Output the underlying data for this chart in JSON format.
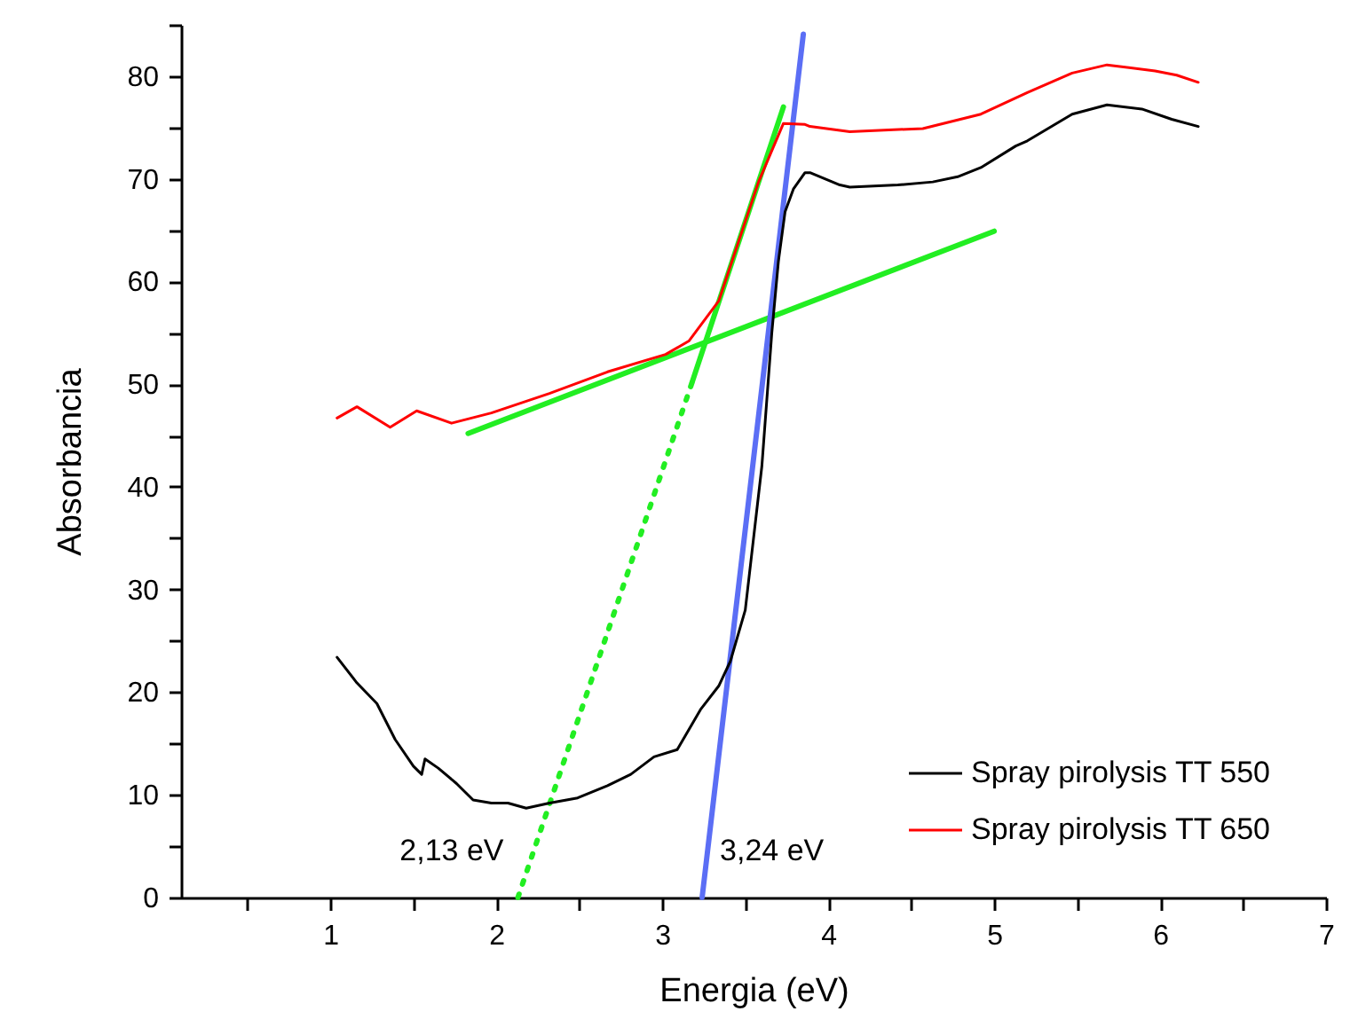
{
  "chart_data": {
    "type": "line",
    "xlabel": "Energia (eV)",
    "ylabel": "Absorbancia",
    "xlim": [
      0.1,
      7
    ],
    "ylim": [
      0,
      85
    ],
    "xticks": [
      {
        "value": 0.5,
        "label": null
      },
      1,
      {
        "value": 1.5,
        "label": null
      },
      2,
      {
        "value": 2.5,
        "label": null
      },
      3,
      {
        "value": 3.5,
        "label": null
      },
      4,
      {
        "value": 4.5,
        "label": null
      },
      5,
      {
        "value": 5.5,
        "label": null
      },
      6,
      {
        "value": 6.5,
        "label": null
      },
      7
    ],
    "yticks": [
      0,
      {
        "value": 5,
        "label": null
      },
      10,
      {
        "value": 15,
        "label": null
      },
      20,
      {
        "value": 25,
        "label": null
      },
      30,
      {
        "value": 35,
        "label": null
      },
      40,
      {
        "value": 45,
        "label": null
      },
      50,
      {
        "value": 55,
        "label": null
      },
      60,
      {
        "value": 65,
        "label": null
      },
      70,
      {
        "value": 75,
        "label": null
      },
      80,
      {
        "value": 85,
        "label": null
      }
    ],
    "grid": false,
    "legend": "bottom right",
    "marker": "none",
    "annotations": [
      {
        "text": "2,13 eV",
        "x": 2.13,
        "y": 0
      },
      {
        "text": "3,24 eV",
        "x": 3.24,
        "y": 0
      }
    ],
    "series": [
      {
        "name": "Spray pirolysis TT 550",
        "color": "#000000",
        "line_style": "solid",
        "x": [
          1.04,
          1.16,
          1.28,
          1.39,
          1.5,
          1.55,
          1.57,
          1.65,
          1.76,
          1.86,
          1.97,
          2.07,
          2.18,
          2.32,
          2.49,
          2.67,
          2.81,
          2.95,
          3.09,
          3.23,
          3.34,
          3.41,
          3.5,
          3.6,
          3.66,
          3.7,
          3.74,
          3.79,
          3.86,
          3.89,
          4.07,
          4.13,
          4.42,
          4.63,
          4.78,
          4.92,
          5.13,
          5.2,
          5.47,
          5.68,
          5.89,
          6.07,
          6.23
        ],
        "values": [
          23.4,
          20.9,
          18.9,
          15.4,
          12.8,
          12.0,
          13.5,
          12.6,
          11.1,
          9.5,
          9.2,
          9.2,
          8.7,
          9.2,
          9.7,
          10.9,
          12.0,
          13.7,
          14.4,
          18.3,
          20.6,
          23.0,
          28,
          42,
          55,
          62,
          66.8,
          69.0,
          70.6,
          70.6,
          69.4,
          69.2,
          69.4,
          69.7,
          70.2,
          71.1,
          73.2,
          73.7,
          76.3,
          77.2,
          76.8,
          75.8,
          75.1
        ]
      },
      {
        "name": "Spray pirolysis TT 650",
        "color": "#ff0000",
        "line_style": "solid",
        "x": [
          1.04,
          1.16,
          1.36,
          1.52,
          1.73,
          1.97,
          2.32,
          2.67,
          3.02,
          3.16,
          3.34,
          3.58,
          3.73,
          3.86,
          3.89,
          4.13,
          4.57,
          4.92,
          5.2,
          5.47,
          5.68,
          5.97,
          6.1,
          6.23
        ],
        "values": [
          46.7,
          47.8,
          45.8,
          47.4,
          46.2,
          47.2,
          49.1,
          51.2,
          52.9,
          54.2,
          58.1,
          69.7,
          75.4,
          75.3,
          75.1,
          74.6,
          74.9,
          76.3,
          78.4,
          80.3,
          81.1,
          80.5,
          80.1,
          79.4
        ]
      },
      {
        "color": "#22ee22",
        "line_style": "solid",
        "x": [
          1.83,
          5.0
        ],
        "values": [
          45.2,
          64.9
        ]
      },
      {
        "color": "#22ee22",
        "line_style": "solid",
        "x": [
          3.18,
          3.73
        ],
        "values": [
          50.2,
          77.0
        ]
      },
      {
        "color": "#22ee22",
        "line_style": "dotted",
        "x": [
          2.13,
          3.18
        ],
        "values": [
          0,
          50.2
        ]
      },
      {
        "color": "#5b6ef5",
        "line_style": "solid",
        "x": [
          3.24,
          3.85
        ],
        "values": [
          0,
          84.1
        ]
      }
    ]
  }
}
